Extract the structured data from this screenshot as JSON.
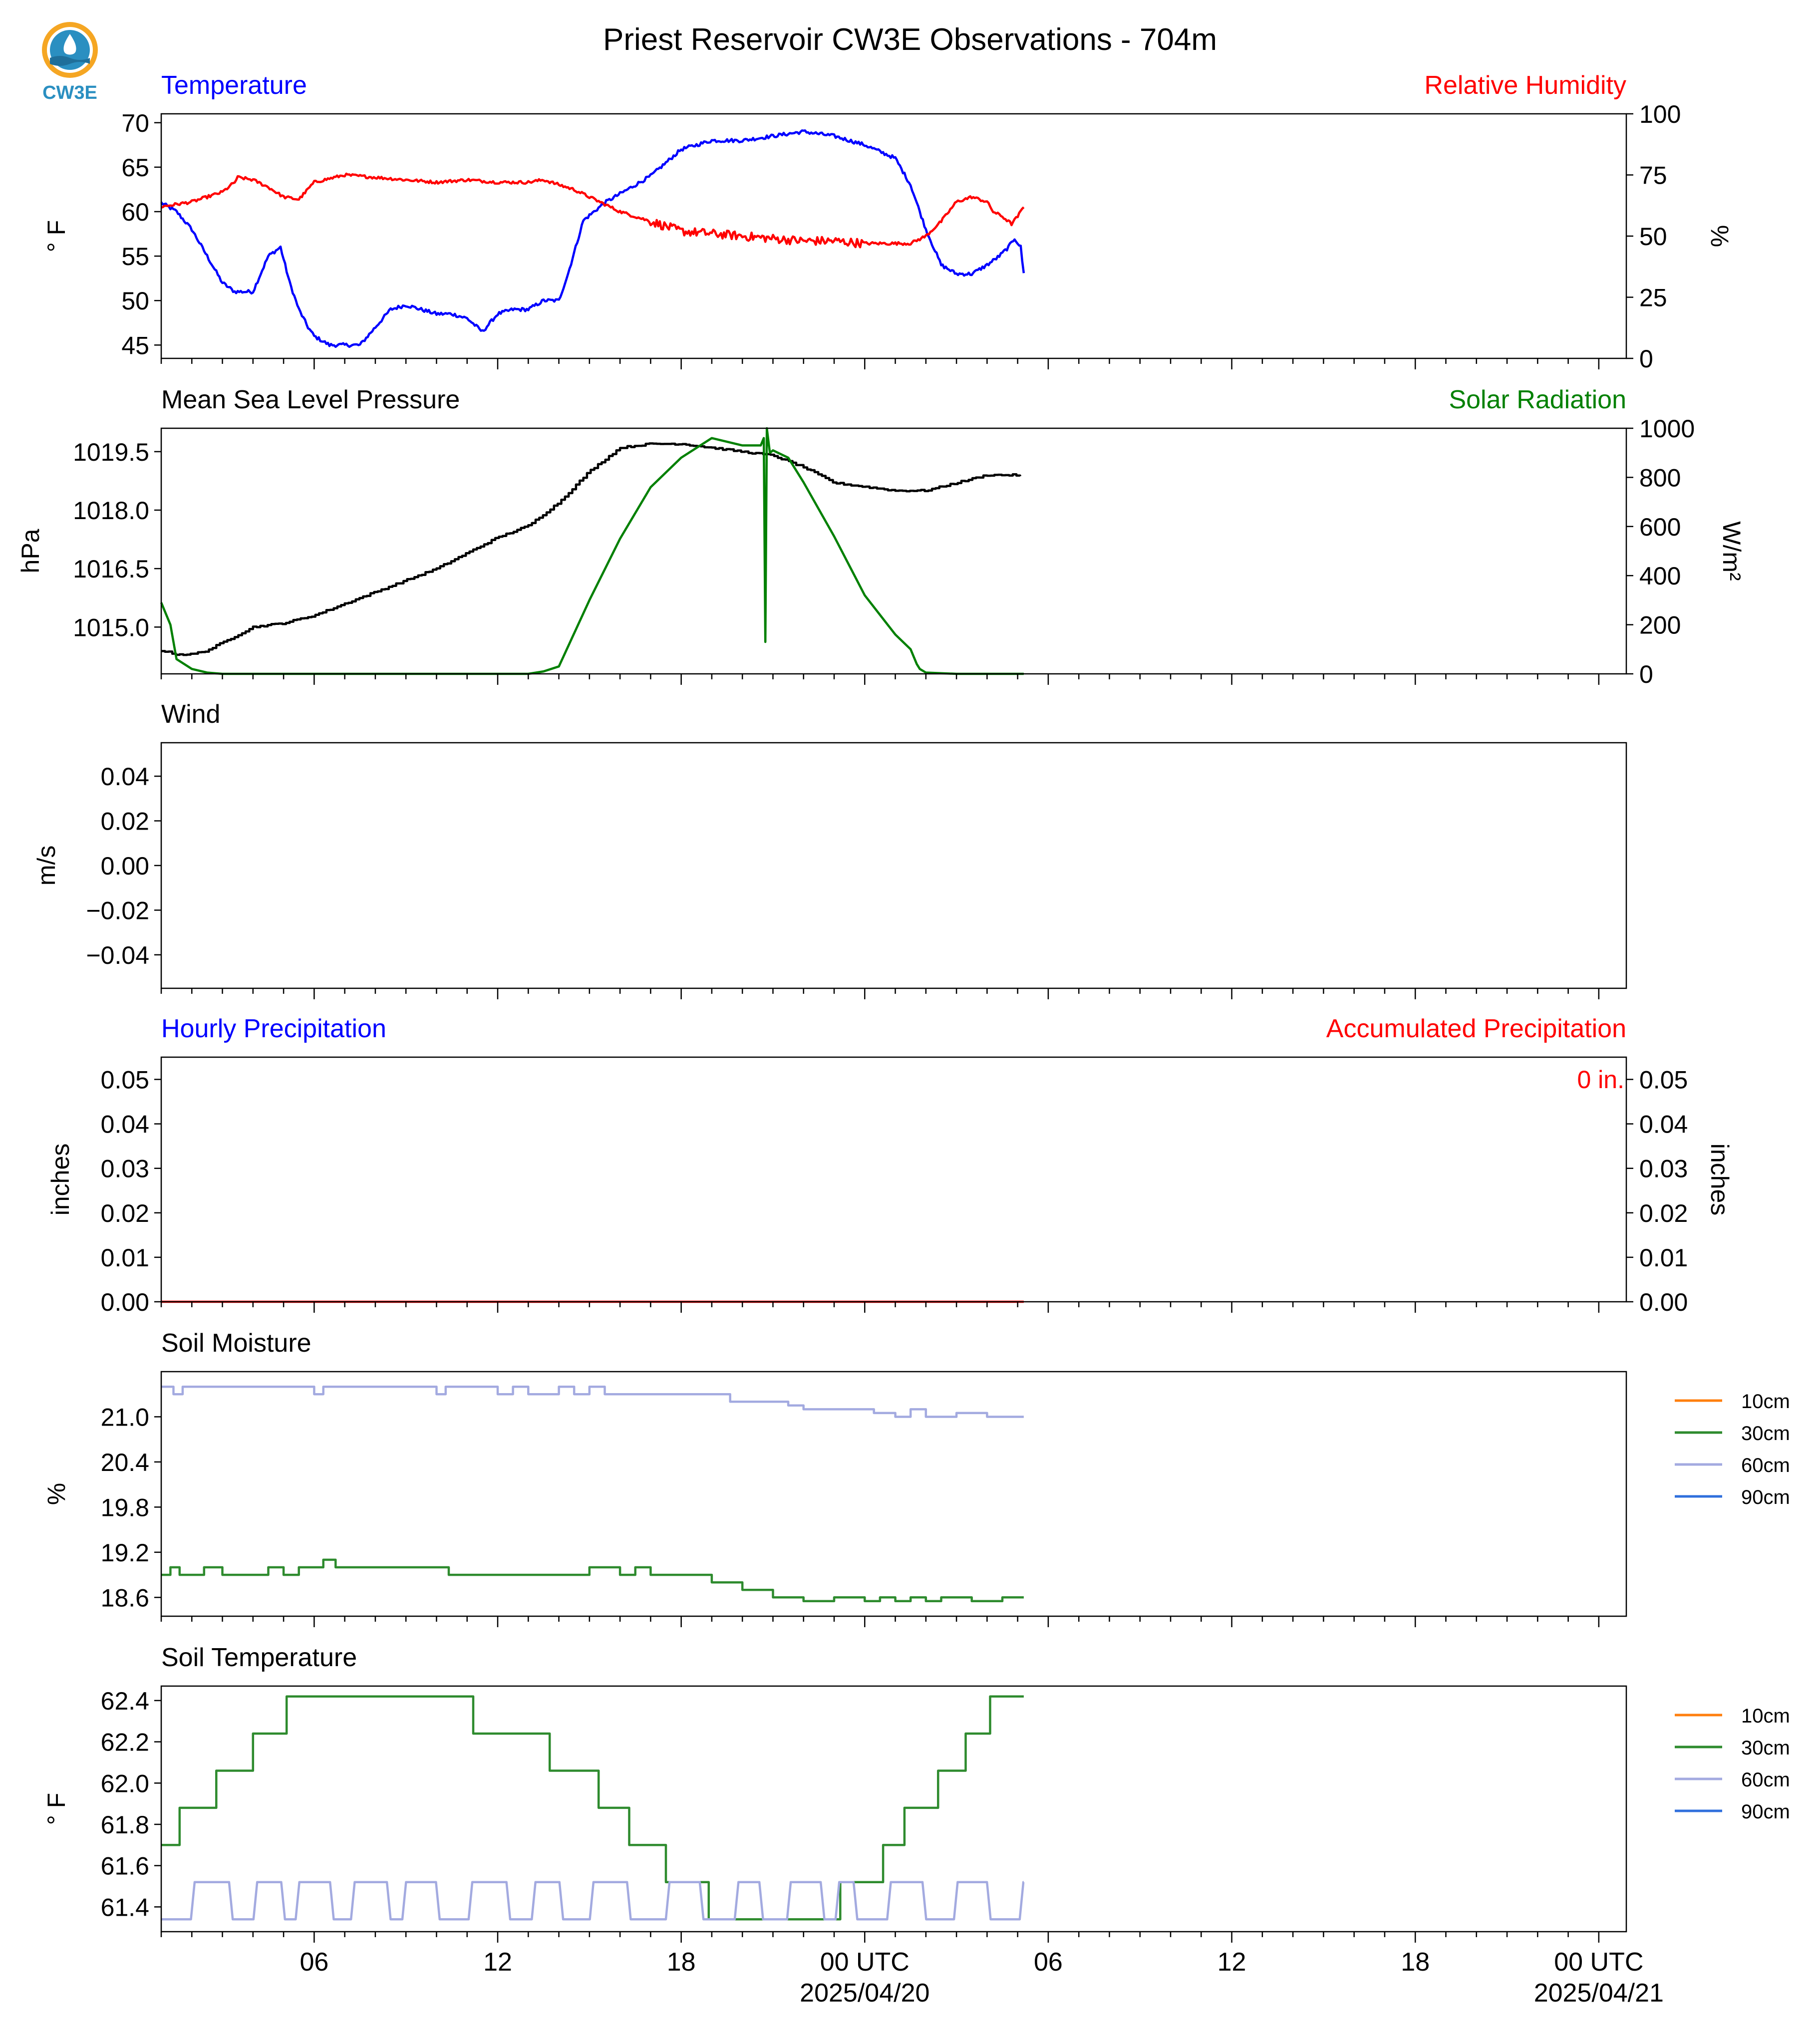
{
  "title": "Priest Reservoir CW3E Observations - 704m",
  "logo": {
    "text": "CW3E"
  },
  "colors": {
    "blue": "#0000ff",
    "red": "#ff0000",
    "green": "#008000",
    "black": "#000000",
    "soil10": "#ff7f0e",
    "soil30": "#2e8b2e",
    "soil60": "#a3aae0",
    "soil90": "#2f6fdc"
  },
  "x_axis": {
    "ticks": [
      "06",
      "12",
      "18",
      "00 UTC",
      "06",
      "12",
      "18",
      "00 UTC"
    ],
    "tick_hours": [
      6,
      12,
      18,
      24,
      30,
      36,
      42,
      48
    ],
    "date_labels": [
      "2025/04/20",
      "2025/04/21"
    ],
    "range_hours": [
      1,
      48.9
    ],
    "data_end_hour": 29.2
  },
  "chart_data": [
    {
      "type": "line",
      "title_left": "Temperature",
      "title_right": "Relative Humidity",
      "ylabel_left": "° F",
      "ylabel_right": "%",
      "ylim_left": [
        43.5,
        71
      ],
      "yticks_left": [
        45,
        50,
        55,
        60,
        65,
        70
      ],
      "ylim_right": [
        0,
        100
      ],
      "yticks_right": [
        0,
        25,
        50,
        75,
        100
      ],
      "series": [
        {
          "axis": "left",
          "color": "blue",
          "noise": 0.4,
          "x": [
            1,
            1.5,
            2,
            2.5,
            3,
            3.4,
            3.5,
            4,
            4.5,
            4.9,
            5.2,
            5.5,
            5.8,
            6,
            6.5,
            7,
            7.5,
            8,
            8.5,
            9,
            9.5,
            10,
            10.5,
            11,
            11.5,
            12,
            12.5,
            13,
            13.5,
            14,
            14.3,
            14.8,
            15.5,
            16,
            17,
            18,
            19,
            20,
            21,
            22,
            23,
            24,
            25,
            25.5,
            26,
            26.5,
            27,
            27.5,
            28,
            28.4,
            28.7,
            28.9,
            29.1,
            29.2
          ],
          "y": [
            61,
            60,
            58,
            55,
            52,
            51,
            51,
            51,
            55,
            56,
            52,
            49,
            47,
            46,
            45,
            45,
            45,
            47,
            49,
            49.5,
            49,
            48.5,
            48.5,
            48,
            46.5,
            48.5,
            49,
            49,
            50,
            50,
            53,
            59,
            61,
            62,
            64,
            67,
            68,
            68,
            68.5,
            69,
            68.5,
            67.5,
            66,
            63,
            58,
            54,
            53,
            53,
            54,
            55,
            56,
            57,
            56,
            53
          ]
        },
        {
          "axis": "right",
          "color": "red",
          "noise": 1.2,
          "x": [
            1,
            1.5,
            2,
            2.5,
            3,
            3.4,
            3.5,
            4,
            4.5,
            5,
            5.5,
            6,
            7,
            8,
            9,
            10,
            11,
            12,
            13,
            13.5,
            14,
            14.5,
            15,
            15.5,
            16,
            17,
            18,
            19,
            20,
            21,
            22,
            23,
            24,
            25,
            25.5,
            26,
            26.5,
            27,
            27.5,
            28,
            28.2,
            28.5,
            28.8,
            29,
            29.2
          ],
          "y": [
            62,
            63,
            64,
            66,
            68,
            72,
            74,
            73,
            70,
            66,
            65,
            72,
            75,
            74,
            73,
            72,
            73,
            72,
            72,
            73,
            71,
            69,
            66,
            63,
            60,
            56,
            52,
            51,
            50,
            49,
            48,
            48,
            47,
            47,
            47,
            50,
            56,
            64,
            66,
            64,
            60,
            58,
            55,
            58,
            62
          ]
        }
      ]
    },
    {
      "type": "line",
      "title_left": "Mean Sea Level Pressure",
      "title_right": "Solar Radiation",
      "ylabel_left": "hPa",
      "ylabel_right": "W/m²",
      "ylim_left": [
        1013.8,
        1020.1
      ],
      "yticks_left": [
        1015.0,
        1016.5,
        1018.0,
        1019.5
      ],
      "ylim_right": [
        0,
        1000
      ],
      "yticks_right": [
        0,
        200,
        400,
        600,
        800,
        1000
      ],
      "series": [
        {
          "axis": "left",
          "color": "black",
          "noise": 0.04,
          "step": true,
          "x": [
            1,
            1.5,
            2,
            2.5,
            3,
            3.5,
            4,
            5,
            6,
            7,
            8,
            9,
            10,
            11,
            12,
            13,
            14,
            15,
            16,
            17,
            18,
            19,
            20,
            21,
            22,
            23,
            24,
            25,
            26,
            27,
            28,
            29,
            29.2
          ],
          "y": [
            1014.4,
            1014.3,
            1014.3,
            1014.4,
            1014.6,
            1014.8,
            1015.0,
            1015.1,
            1015.3,
            1015.6,
            1015.9,
            1016.2,
            1016.5,
            1016.9,
            1017.3,
            1017.6,
            1018.2,
            1019.0,
            1019.6,
            1019.7,
            1019.7,
            1019.6,
            1019.5,
            1019.4,
            1019.1,
            1018.7,
            1018.6,
            1018.5,
            1018.5,
            1018.7,
            1018.9,
            1018.9,
            1018.8
          ]
        },
        {
          "axis": "right",
          "color": "green",
          "noise": 0,
          "x": [
            1,
            1.3,
            1.5,
            2,
            2.5,
            3,
            6,
            13,
            13.5,
            14,
            15,
            16,
            17,
            18,
            19,
            20,
            20.6,
            20.7,
            20.75,
            20.8,
            20.9,
            21,
            21.5,
            22,
            23,
            24,
            25,
            25.5,
            25.7,
            25.8,
            26,
            27,
            29.2
          ],
          "y": [
            290,
            200,
            60,
            20,
            5,
            0,
            0,
            0,
            10,
            30,
            300,
            550,
            760,
            880,
            960,
            930,
            930,
            960,
            130,
            1000,
            900,
            910,
            880,
            780,
            560,
            320,
            160,
            100,
            40,
            20,
            5,
            0,
            0
          ]
        }
      ]
    },
    {
      "type": "line",
      "title_left": "Wind",
      "ylabel_left": "m/s",
      "ylim_left": [
        -0.055,
        0.055
      ],
      "yticks_left": [
        -0.04,
        -0.02,
        0.0,
        0.02,
        0.04
      ],
      "yticklabels_left": [
        "−0.04",
        "−0.02",
        "0.00",
        "0.02",
        "0.04"
      ],
      "series": []
    },
    {
      "type": "line",
      "title_left": "Hourly Precipitation",
      "title_right": "Accumulated Precipitation",
      "ylabel_left": "inches",
      "ylabel_right": "inches",
      "ylim_left": [
        0,
        0.055
      ],
      "yticks_left": [
        0.0,
        0.01,
        0.02,
        0.03,
        0.04,
        0.05
      ],
      "ylim_right": [
        0,
        0.055
      ],
      "yticks_right": [
        0.0,
        0.01,
        0.02,
        0.03,
        0.04,
        0.05
      ],
      "annotation": "0 in.",
      "series": [
        {
          "axis": "left",
          "color": "red",
          "noise": 0,
          "x": [
            1,
            29.2
          ],
          "y": [
            0,
            0
          ]
        }
      ]
    },
    {
      "type": "line",
      "title_left": "Soil Moisture",
      "ylabel_left": "%",
      "ylim_left": [
        18.35,
        21.6
      ],
      "yticks_left": [
        18.6,
        19.2,
        19.8,
        20.4,
        21.0
      ],
      "legend": [
        "10cm",
        "30cm",
        "60cm",
        "90cm"
      ],
      "legend_colors": [
        "soil10",
        "soil30",
        "soil60",
        "soil90"
      ],
      "series": [
        {
          "axis": "left",
          "color": "soil60",
          "noise": 0,
          "step": true,
          "x": [
            1,
            1.4,
            1.7,
            6,
            6.3,
            10,
            10.3,
            12,
            12.5,
            13,
            14,
            14.5,
            15,
            15.5,
            16,
            17,
            18,
            19.6,
            21.5,
            22,
            24,
            24.3,
            25,
            25.5,
            26,
            26.5,
            27,
            28,
            29.2
          ],
          "y": [
            21.4,
            21.3,
            21.4,
            21.3,
            21.4,
            21.3,
            21.4,
            21.3,
            21.4,
            21.3,
            21.4,
            21.3,
            21.4,
            21.3,
            21.3,
            21.3,
            21.3,
            21.2,
            21.15,
            21.1,
            21.1,
            21.05,
            21.0,
            21.1,
            21.0,
            21.0,
            21.05,
            21.0,
            21.0
          ]
        },
        {
          "axis": "left",
          "color": "soil30",
          "noise": 0,
          "step": true,
          "x": [
            1,
            1.3,
            1.6,
            2,
            2.4,
            3,
            4,
            4.5,
            5,
            5.5,
            6,
            6.3,
            6.7,
            10,
            10.4,
            11,
            12,
            14,
            15,
            16,
            16.5,
            17,
            17.5,
            18,
            19,
            20,
            21,
            21.5,
            22,
            23,
            24,
            24.5,
            25,
            25.5,
            26,
            26.5,
            27,
            27.5,
            28,
            28.5,
            29.2
          ],
          "y": [
            18.9,
            19.0,
            18.9,
            18.9,
            19.0,
            18.9,
            18.9,
            19.0,
            18.9,
            19.0,
            19.0,
            19.1,
            19.0,
            19.0,
            18.9,
            18.9,
            18.9,
            18.9,
            19.0,
            18.9,
            19.0,
            18.9,
            18.9,
            18.9,
            18.8,
            18.7,
            18.6,
            18.6,
            18.55,
            18.6,
            18.55,
            18.6,
            18.55,
            18.6,
            18.55,
            18.6,
            18.6,
            18.55,
            18.55,
            18.6,
            18.6
          ]
        }
      ]
    },
    {
      "type": "line",
      "title_left": "Soil Temperature",
      "ylabel_left": "° F",
      "ylim_left": [
        61.28,
        62.47
      ],
      "yticks_left": [
        61.4,
        61.6,
        61.8,
        62.0,
        62.2,
        62.4
      ],
      "legend": [
        "10cm",
        "30cm",
        "60cm",
        "90cm"
      ],
      "legend_colors": [
        "soil10",
        "soil30",
        "soil60",
        "soil90"
      ],
      "series": [
        {
          "axis": "left",
          "color": "soil30",
          "noise": 0,
          "step": true,
          "x": [
            1,
            1.6,
            2,
            2.8,
            4,
            5.1,
            11.2,
            12.1,
            13.7,
            15.3,
            16.3,
            17.5,
            18.9,
            21,
            23.2,
            24.6,
            25.3,
            26.4,
            27.3,
            28.1,
            29.2
          ],
          "y": [
            61.7,
            61.88,
            61.88,
            62.06,
            62.24,
            62.42,
            62.24,
            62.24,
            62.06,
            61.88,
            61.7,
            61.52,
            61.34,
            61.34,
            61.52,
            61.7,
            61.88,
            62.06,
            62.24,
            62.42,
            62.42
          ]
        },
        {
          "axis": "left",
          "color": "soil60",
          "noise": 0,
          "osc": true,
          "x": [
            1,
            29.2
          ],
          "y": [
            61.34,
            61.52
          ]
        }
      ]
    }
  ]
}
